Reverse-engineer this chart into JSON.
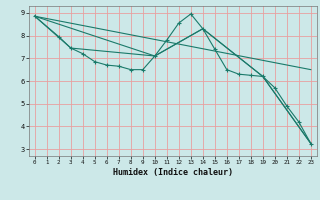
{
  "xlabel": "Humidex (Indice chaleur)",
  "bg_color": "#cce8e8",
  "grid_color": "#e8a0a0",
  "line_color": "#1a7a6a",
  "xlim": [
    -0.5,
    23.5
  ],
  "ylim": [
    2.7,
    9.3
  ],
  "yticks": [
    3,
    4,
    5,
    6,
    7,
    8,
    9
  ],
  "xticks": [
    0,
    1,
    2,
    3,
    4,
    5,
    6,
    7,
    8,
    9,
    10,
    11,
    12,
    13,
    14,
    15,
    16,
    17,
    18,
    19,
    20,
    21,
    22,
    23
  ],
  "line1_x": [
    0,
    2,
    3,
    4,
    5,
    6,
    7,
    8,
    9,
    10,
    11,
    12,
    13,
    14,
    15,
    16,
    17,
    18,
    19,
    20,
    21,
    22,
    23
  ],
  "line1_y": [
    8.85,
    7.95,
    7.45,
    7.2,
    6.85,
    6.7,
    6.65,
    6.5,
    6.5,
    7.1,
    7.8,
    8.55,
    8.95,
    8.3,
    7.4,
    6.5,
    6.3,
    6.25,
    6.2,
    5.7,
    4.9,
    4.2,
    3.25
  ],
  "line2_x": [
    0,
    3,
    10,
    14,
    19,
    23
  ],
  "line2_y": [
    8.85,
    7.45,
    7.1,
    8.3,
    6.2,
    3.25
  ],
  "line3_x": [
    0,
    23
  ],
  "line3_y": [
    8.85,
    6.5
  ],
  "line4_x": [
    0,
    10,
    14,
    19,
    23
  ],
  "line4_y": [
    8.85,
    7.1,
    8.3,
    6.2,
    3.25
  ]
}
